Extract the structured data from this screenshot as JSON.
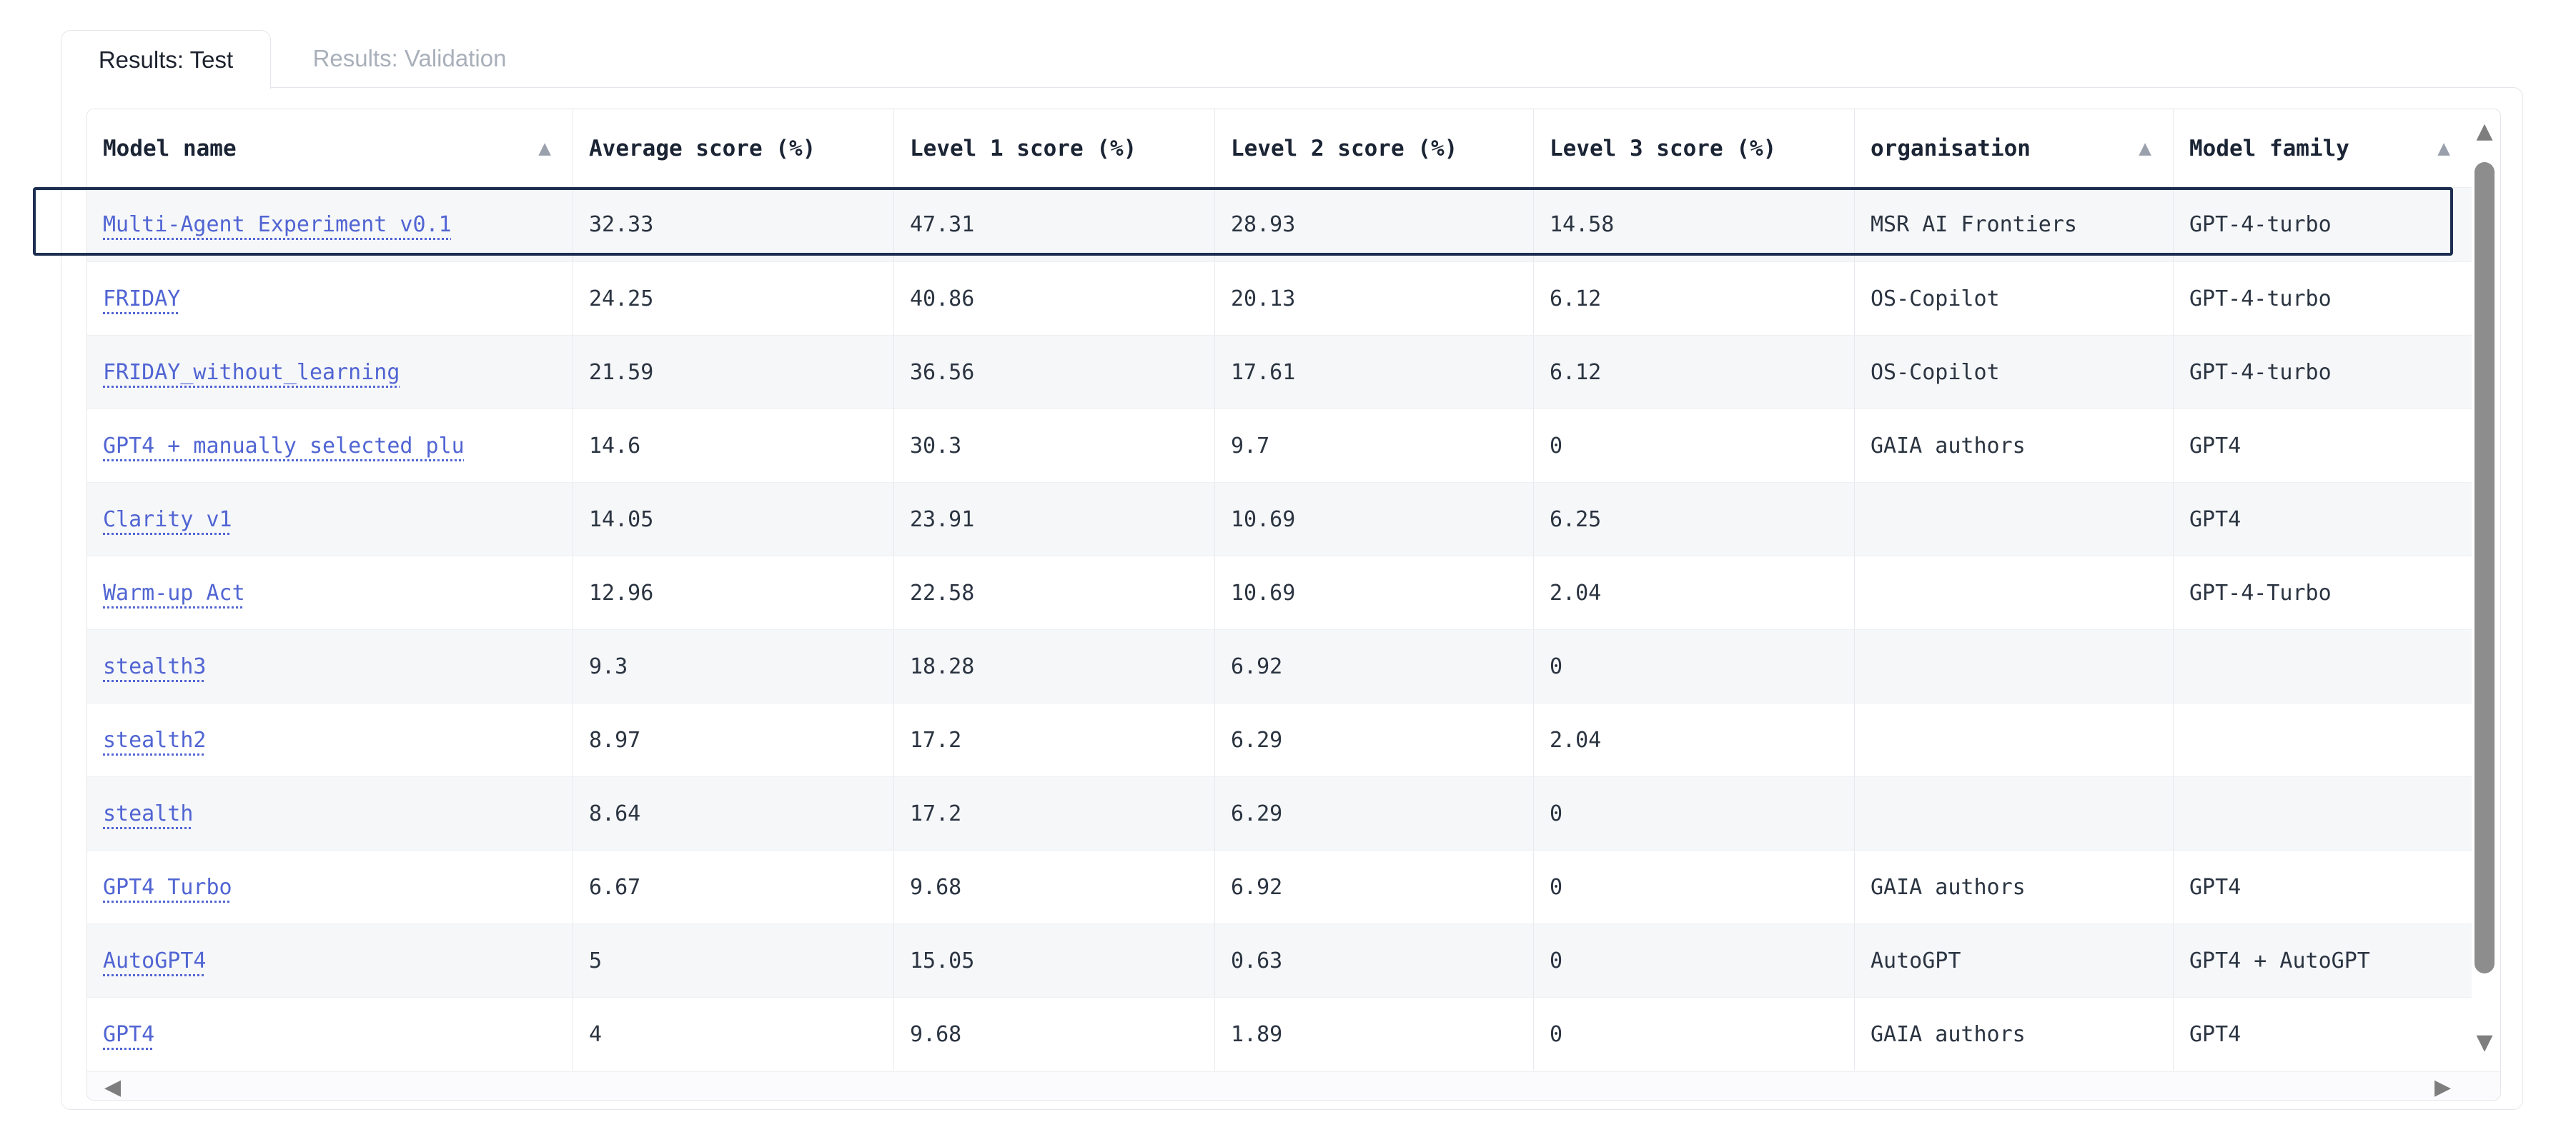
{
  "tabs": [
    {
      "label": "Results: Test",
      "active": true
    },
    {
      "label": "Results: Validation",
      "active": false
    }
  ],
  "table": {
    "columns": [
      {
        "label": "Model name",
        "sorted": true
      },
      {
        "label": "Average score (%)",
        "sorted": false
      },
      {
        "label": "Level 1 score (%)",
        "sorted": false
      },
      {
        "label": "Level 2 score (%)",
        "sorted": false
      },
      {
        "label": "Level 3 score (%)",
        "sorted": false
      },
      {
        "label": "organisation",
        "sorted": true
      },
      {
        "label": "Model family",
        "sorted": true
      }
    ],
    "rows": [
      {
        "cells": [
          "Multi-Agent Experiment v0.1",
          "32.33",
          "47.31",
          "28.93",
          "14.58",
          "MSR AI Frontiers",
          "GPT-4-turbo"
        ],
        "selected": true
      },
      {
        "cells": [
          "FRIDAY",
          "24.25",
          "40.86",
          "20.13",
          "6.12",
          "OS-Copilot",
          "GPT-4-turbo"
        ],
        "selected": false
      },
      {
        "cells": [
          "FRIDAY_without_learning",
          "21.59",
          "36.56",
          "17.61",
          "6.12",
          "OS-Copilot",
          "GPT-4-turbo"
        ],
        "selected": false
      },
      {
        "cells": [
          "GPT4 + manually selected plu",
          "14.6",
          "30.3",
          "9.7",
          "0",
          "GAIA authors",
          "GPT4"
        ],
        "selected": false
      },
      {
        "cells": [
          "Clarity v1",
          "14.05",
          "23.91",
          "10.69",
          "6.25",
          "",
          "GPT4"
        ],
        "selected": false
      },
      {
        "cells": [
          "Warm-up Act",
          "12.96",
          "22.58",
          "10.69",
          "2.04",
          "",
          "GPT-4-Turbo"
        ],
        "selected": false
      },
      {
        "cells": [
          "stealth3",
          "9.3",
          "18.28",
          "6.92",
          "0",
          "",
          ""
        ],
        "selected": false
      },
      {
        "cells": [
          "stealth2",
          "8.97",
          "17.2",
          "6.29",
          "2.04",
          "",
          ""
        ],
        "selected": false
      },
      {
        "cells": [
          "stealth",
          "8.64",
          "17.2",
          "6.29",
          "0",
          "",
          ""
        ],
        "selected": false
      },
      {
        "cells": [
          "GPT4 Turbo",
          "6.67",
          "9.68",
          "6.92",
          "0",
          "GAIA authors",
          "GPT4"
        ],
        "selected": false
      },
      {
        "cells": [
          "AutoGPT4",
          "5",
          "15.05",
          "0.63",
          "0",
          "AutoGPT",
          "GPT4 + AutoGPT"
        ],
        "selected": false
      },
      {
        "cells": [
          "GPT4",
          "4",
          "9.68",
          "1.89",
          "0",
          "GAIA authors",
          "GPT4"
        ],
        "selected": false
      }
    ]
  },
  "icons": {
    "sort_asc": "▲",
    "scroll_up": "▲",
    "scroll_down": "▼",
    "scroll_left": "◀",
    "scroll_right": "▶"
  },
  "colors": {
    "link": "#5165d3",
    "selection_border": "#1d2e50",
    "alt_row_bg": "#f6f7f9",
    "header_text": "#1b2434",
    "cell_text": "#2b3441",
    "inactive_tab_text": "#a9b0ba",
    "active_tab_text": "#1c222e",
    "border": "#e3e6ea",
    "scrollbar_thumb": "#8d8d8d",
    "scrollbar_arrow": "#7e7e7e",
    "sort_arrow": "#9aa1ad"
  }
}
